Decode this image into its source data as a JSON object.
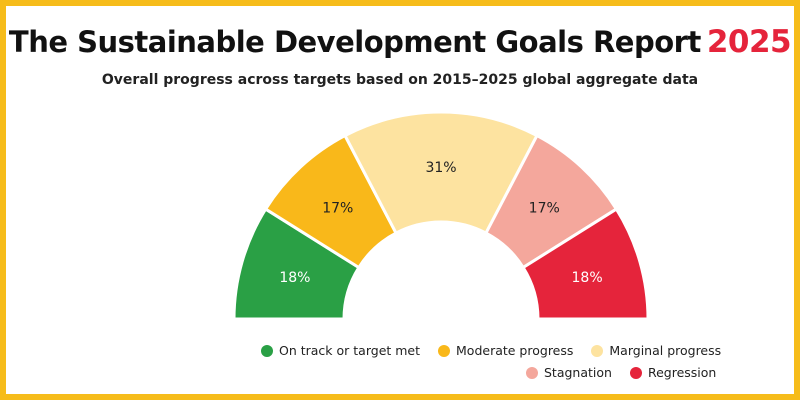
{
  "header": {
    "title": "The Sustainable Development Goals Report",
    "year": "2025",
    "subtitle": "Overall progress across targets based on 2015–2025 global aggregate data"
  },
  "colors": {
    "frame": "#f6bc1a",
    "year": "#e5243b"
  },
  "chart_data": {
    "type": "pie",
    "variant": "half-donut",
    "title": "Overall progress across targets based on 2015–2025 global aggregate data",
    "categories": [
      "On track or target met",
      "Moderate progress",
      "Marginal progress",
      "Stagnation",
      "Regression"
    ],
    "values": [
      18,
      17,
      31,
      17,
      18
    ],
    "labels": [
      "18%",
      "17%",
      "31%",
      "17%",
      "18%"
    ],
    "colors": [
      "#2aa045",
      "#f9b81a",
      "#fde3a0",
      "#f4a79c",
      "#e5243b"
    ],
    "label_colors": [
      "#ffffff",
      "#222222",
      "#222222",
      "#222222",
      "#ffffff"
    ],
    "legend_position": "bottom-right"
  }
}
